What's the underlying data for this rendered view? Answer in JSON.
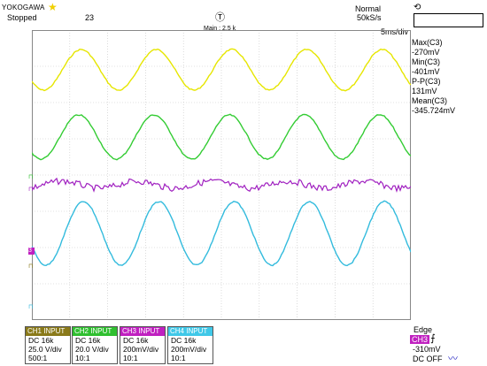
{
  "header": {
    "brand": "YOKOGAWA",
    "status": "Stopped",
    "acq_count": "23",
    "mode": "Normal",
    "sample_rate": "50kS/s",
    "main_label": "Main : 2.5 k",
    "timebase": "5ms/div"
  },
  "measurements": {
    "max_label": "Max(C3)",
    "max_value": "-270mV",
    "min_label": "Min(C3)",
    "min_value": "-401mV",
    "pp_label": "P-P(C3)",
    "pp_value": "131mV",
    "mean_label": "Mean(C3)",
    "mean_value": "-345.724mV"
  },
  "trigger": {
    "type": "Edge",
    "channel": "CH3",
    "level": "-310mV",
    "coupling": "DC OFF"
  },
  "channels": [
    {
      "header": "CH1 INPUT",
      "coupling": "DC 16k",
      "scale": "25.0 V/div",
      "probe": "500:1",
      "color": "#8a7a1a"
    },
    {
      "header": "CH2 INPUT",
      "coupling": "DC 16k",
      "scale": "20.0 V/div",
      "probe": "10:1",
      "color": "#2fbf2f"
    },
    {
      "header": "CH3 INPUT",
      "coupling": "DC 16k",
      "scale": "200mV/div",
      "probe": "10:1",
      "color": "#c020c0"
    },
    {
      "header": "CH4 INPUT",
      "coupling": "DC 16k",
      "scale": "200mV/div",
      "probe": "10:1",
      "color": "#40c8e8"
    }
  ],
  "colors": {
    "ch1": "#e6e600",
    "ch2": "#33cc33",
    "ch3": "#a020c0",
    "ch4": "#33bbdd",
    "grid": "#bdbdbd"
  },
  "icons": [
    "star-icon",
    "trigger-position-icon",
    "trigger-edge-icon",
    "zoom-icon"
  ]
}
